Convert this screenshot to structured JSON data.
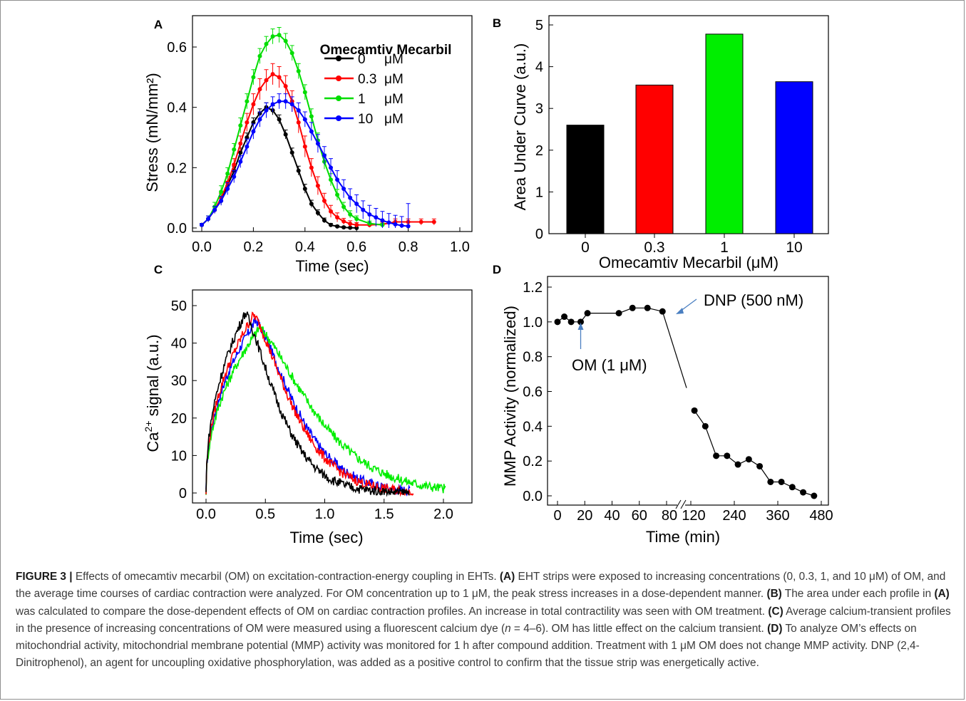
{
  "panels": [
    {
      "id": "A",
      "label": "A"
    },
    {
      "id": "B",
      "label": "B"
    },
    {
      "id": "C",
      "label": "C"
    },
    {
      "id": "D",
      "label": "D"
    }
  ],
  "chart_data": [
    {
      "panel": "A",
      "type": "line",
      "title": "",
      "xlabel": "Time (sec)",
      "ylabel": "Stress (mN/mm²)",
      "xlim": [
        0,
        1.0
      ],
      "ylim": [
        0,
        0.65
      ],
      "xticks": [
        "0.0",
        "0.2",
        "0.4",
        "0.6",
        "0.8",
        "1.0"
      ],
      "yticks": [
        "0.0",
        "0.2",
        "0.4",
        "0.6"
      ],
      "legend_title": "Omecamtiv Mecarbil",
      "legend_placement": "top-right",
      "series": [
        {
          "name": "0",
          "unit": "μM",
          "color": "#000000",
          "x": [
            0,
            0.025,
            0.05,
            0.075,
            0.1,
            0.125,
            0.15,
            0.175,
            0.2,
            0.225,
            0.25,
            0.275,
            0.3,
            0.325,
            0.35,
            0.375,
            0.4,
            0.425,
            0.45,
            0.475,
            0.5,
            0.525,
            0.55,
            0.575,
            0.6
          ],
          "y": [
            0.01,
            0.03,
            0.06,
            0.09,
            0.14,
            0.19,
            0.25,
            0.3,
            0.35,
            0.38,
            0.4,
            0.39,
            0.36,
            0.31,
            0.25,
            0.19,
            0.13,
            0.08,
            0.05,
            0.025,
            0.01,
            0.005,
            0.002,
            0.001,
            0.0
          ],
          "err": [
            0.005,
            0.01,
            0.01,
            0.012,
            0.015,
            0.015,
            0.015,
            0.015,
            0.015,
            0.015,
            0.015,
            0.015,
            0.015,
            0.015,
            0.015,
            0.015,
            0.015,
            0.012,
            0.01,
            0.008,
            0.005,
            0.004,
            0.003,
            0.002,
            0.002
          ]
        },
        {
          "name": "0.3",
          "unit": "μM",
          "color": "#ff0000",
          "x": [
            0,
            0.025,
            0.05,
            0.075,
            0.1,
            0.125,
            0.15,
            0.175,
            0.2,
            0.225,
            0.25,
            0.275,
            0.3,
            0.325,
            0.35,
            0.375,
            0.4,
            0.425,
            0.45,
            0.475,
            0.5,
            0.525,
            0.55,
            0.575,
            0.6,
            0.65,
            0.7,
            0.75,
            0.8,
            0.85,
            0.9
          ],
          "y": [
            0.01,
            0.03,
            0.06,
            0.1,
            0.15,
            0.21,
            0.28,
            0.35,
            0.41,
            0.46,
            0.49,
            0.51,
            0.5,
            0.47,
            0.42,
            0.35,
            0.27,
            0.2,
            0.14,
            0.09,
            0.055,
            0.035,
            0.022,
            0.014,
            0.01,
            0.01,
            0.012,
            0.02,
            0.02,
            0.02,
            0.02
          ],
          "err": [
            0.005,
            0.01,
            0.01,
            0.015,
            0.02,
            0.02,
            0.025,
            0.03,
            0.035,
            0.035,
            0.035,
            0.035,
            0.035,
            0.035,
            0.035,
            0.035,
            0.035,
            0.03,
            0.03,
            0.025,
            0.02,
            0.015,
            0.01,
            0.01,
            0.008,
            0.008,
            0.008,
            0.01,
            0.01,
            0.01,
            0.01
          ]
        },
        {
          "name": "1",
          "unit": "μM",
          "color": "#00dd00",
          "x": [
            0,
            0.025,
            0.05,
            0.075,
            0.1,
            0.125,
            0.15,
            0.175,
            0.2,
            0.225,
            0.25,
            0.275,
            0.3,
            0.325,
            0.35,
            0.375,
            0.4,
            0.425,
            0.45,
            0.475,
            0.5,
            0.525,
            0.55,
            0.575,
            0.6,
            0.65,
            0.7
          ],
          "y": [
            0.01,
            0.03,
            0.07,
            0.12,
            0.18,
            0.26,
            0.34,
            0.42,
            0.5,
            0.57,
            0.61,
            0.635,
            0.64,
            0.62,
            0.58,
            0.52,
            0.45,
            0.37,
            0.29,
            0.22,
            0.16,
            0.11,
            0.07,
            0.045,
            0.03,
            0.015,
            0.01
          ],
          "err": [
            0.005,
            0.01,
            0.015,
            0.02,
            0.02,
            0.02,
            0.025,
            0.025,
            0.025,
            0.025,
            0.025,
            0.025,
            0.025,
            0.025,
            0.025,
            0.025,
            0.025,
            0.025,
            0.025,
            0.025,
            0.02,
            0.018,
            0.015,
            0.012,
            0.01,
            0.008,
            0.006
          ]
        },
        {
          "name": "10",
          "unit": "μM",
          "color": "#0000ff",
          "x": [
            0,
            0.025,
            0.05,
            0.075,
            0.1,
            0.125,
            0.15,
            0.175,
            0.2,
            0.225,
            0.25,
            0.275,
            0.3,
            0.325,
            0.35,
            0.375,
            0.4,
            0.425,
            0.45,
            0.475,
            0.5,
            0.525,
            0.55,
            0.575,
            0.6,
            0.625,
            0.65,
            0.675,
            0.7,
            0.725,
            0.75,
            0.775,
            0.8
          ],
          "y": [
            0.01,
            0.03,
            0.06,
            0.09,
            0.13,
            0.17,
            0.22,
            0.27,
            0.32,
            0.36,
            0.39,
            0.41,
            0.42,
            0.42,
            0.41,
            0.39,
            0.36,
            0.32,
            0.28,
            0.24,
            0.2,
            0.16,
            0.13,
            0.1,
            0.08,
            0.06,
            0.045,
            0.035,
            0.025,
            0.018,
            0.012,
            0.008,
            0.006
          ],
          "err": [
            0.005,
            0.01,
            0.012,
            0.015,
            0.02,
            0.02,
            0.02,
            0.025,
            0.025,
            0.025,
            0.025,
            0.025,
            0.025,
            0.025,
            0.025,
            0.025,
            0.025,
            0.03,
            0.03,
            0.03,
            0.03,
            0.03,
            0.03,
            0.03,
            0.03,
            0.03,
            0.03,
            0.03,
            0.03,
            0.03,
            0.03,
            0.03,
            0.075
          ]
        }
      ]
    },
    {
      "panel": "B",
      "type": "bar",
      "title": "",
      "xlabel": "Omecamtiv Mecarbil (μM)",
      "ylabel": "Area Under Curve (a.u.)",
      "categories": [
        "0",
        "0.3",
        "1",
        "10"
      ],
      "values": [
        2.6,
        3.56,
        4.78,
        3.64
      ],
      "colors": [
        "#000000",
        "#ff0000",
        "#00ee00",
        "#0000ff"
      ],
      "ylim": [
        0,
        5
      ],
      "yticks": [
        "0",
        "1",
        "2",
        "3",
        "4",
        "5"
      ]
    },
    {
      "panel": "C",
      "type": "line",
      "title": "",
      "xlabel": "Time (sec)",
      "ylabel_main": "Ca",
      "ylabel_sup": "2+",
      "ylabel_rest": " signal (a.u.)",
      "xlim": [
        0,
        2.2
      ],
      "ylim": [
        0,
        55
      ],
      "xticks": [
        "0.0",
        "0.5",
        "1.0",
        "1.5",
        "2.0"
      ],
      "yticks": [
        "0",
        "10",
        "20",
        "30",
        "40",
        "50"
      ],
      "series": [
        {
          "name": "0",
          "color": "#000000",
          "peak_t": 0.33,
          "peak": 48,
          "decay": 0.36,
          "end": 1.72
        },
        {
          "name": "0.3",
          "color": "#ff0000",
          "peak_t": 0.4,
          "peak": 47.5,
          "decay": 0.42,
          "end": 1.75
        },
        {
          "name": "1",
          "color": "#00ee00",
          "peak_t": 0.45,
          "peak": 44,
          "decay": 0.6,
          "end": 2.02
        },
        {
          "name": "10",
          "color": "#0000ff",
          "peak_t": 0.42,
          "peak": 46,
          "decay": 0.44,
          "end": 1.72
        }
      ]
    },
    {
      "panel": "D",
      "type": "scatter",
      "title": "",
      "xlabel": "Time (min)",
      "ylabel": "MMP Activity (normalized)",
      "xticks": [
        "0",
        "20",
        "40",
        "60",
        "80",
        "120",
        "240",
        "360",
        "480"
      ],
      "yticks": [
        "0.0",
        "0.2",
        "0.4",
        "0.6",
        "0.8",
        "1.0",
        "1.2"
      ],
      "ylim": [
        0,
        1.2
      ],
      "x_break": [
        80,
        120
      ],
      "segment1": {
        "x": [
          0,
          5,
          10,
          17,
          22,
          45,
          55,
          66,
          77
        ],
        "y": [
          1.0,
          1.03,
          1.0,
          1.0,
          1.05,
          1.05,
          1.08,
          1.08,
          1.06
        ]
      },
      "segment2": {
        "x": [
          130,
          160,
          190,
          220,
          250,
          280,
          310,
          340,
          370,
          400,
          430,
          460
        ],
        "y": [
          0.49,
          0.4,
          0.23,
          0.23,
          0.18,
          0.21,
          0.17,
          0.08,
          0.08,
          0.05,
          0.02,
          0.0
        ]
      },
      "annotations": [
        {
          "text_prefix": "OM (1 ",
          "text_unit": "μM)",
          "at_x": 17
        },
        {
          "text": "DNP (500 nM)",
          "at_x": 80
        }
      ]
    }
  ],
  "caption": {
    "label": "FIGURE 3 |",
    "intro": " Effects of omecamtiv mecarbil (OM) on excitation-contraction-energy coupling in EHTs. ",
    "a_tag": "(A)",
    "a_text": " EHT strips were exposed to increasing concentrations (0, 0.3, 1, and 10 μM) of OM, and the average time courses of cardiac contraction were analyzed. For OM concentration up to 1 μM, the peak stress increases in a dose-dependent manner. ",
    "b_tag": "(B)",
    "b_text1": " The area under each profile in ",
    "b_ref": "(A)",
    "b_text2": " was calculated to compare the dose-dependent effects of OM on cardiac contraction profiles. An increase in total contractility was seen with OM treatment. ",
    "c_tag": "(C)",
    "c_text1": " Average calcium-transient profiles in the presence of increasing concentrations of OM were measured using a fluorescent calcium dye (",
    "c_n": "n",
    "c_text2": " = 4–6). OM has little effect on the calcium transient. ",
    "d_tag": "(D)",
    "d_text": " To analyze OM’s effects on mitochondrial activity, mitochondrial membrane potential (MMP) activity was monitored for 1 h after compound addition. Treatment with 1 μM OM does not change MMP activity. DNP (2,4-Dinitrophenol), an agent for uncoupling oxidative phosphorylation, was added as a positive control to confirm that the tissue strip was energetically active."
  }
}
